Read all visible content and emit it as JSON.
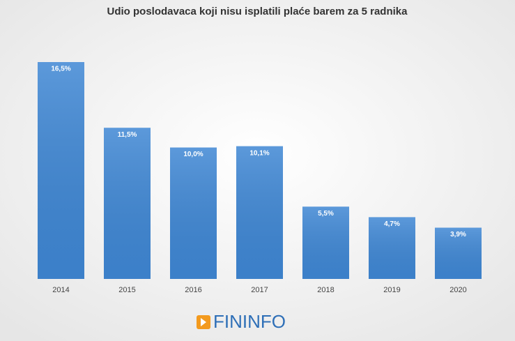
{
  "chart_data": {
    "type": "bar",
    "title": "Udio poslodavaca koji nisu isplatili plaće barem za 5 radnika",
    "categories": [
      "2014",
      "2015",
      "2016",
      "2017",
      "2018",
      "2019",
      "2020"
    ],
    "values": [
      16.5,
      11.5,
      10.0,
      10.1,
      5.5,
      4.7,
      3.9
    ],
    "value_labels": [
      "16,5%",
      "11,5%",
      "10,0%",
      "10,1%",
      "5,5%",
      "4,7%",
      "3,9%"
    ],
    "color": "#3f87d4"
  },
  "logo": {
    "text": "FININFO"
  }
}
